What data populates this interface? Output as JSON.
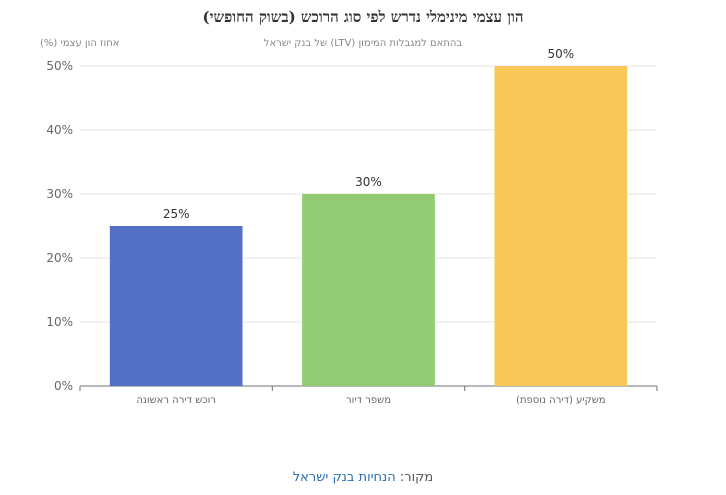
{
  "chart_data": {
    "type": "bar",
    "title": "הון עצמי מינימלי נדרש לפי סוג הרוכש (בשוק החופשי)",
    "subtitle": "בהתאם למגבלות המימון (LTV) של בנק ישראל",
    "ylabel": "אחוז הון עצמי (%)",
    "xlabel": "",
    "categories": [
      "רוכש דירה ראשונה",
      "משפר דיור",
      "משקיע (דירה נוספת)"
    ],
    "values": [
      25,
      30,
      50
    ],
    "data_labels": [
      "25%",
      "30%",
      "50%"
    ],
    "colors": [
      "#5470c6",
      "#91cc75",
      "#fac858"
    ],
    "ylim": [
      0,
      50
    ],
    "yticks": [
      0,
      10,
      20,
      30,
      40,
      50
    ],
    "ytick_labels": [
      "0%",
      "10%",
      "20%",
      "30%",
      "40%",
      "50%"
    ],
    "grid": true
  },
  "source": {
    "prefix": "מקור: ",
    "link_text": "הנחיות בנק ישראל"
  }
}
